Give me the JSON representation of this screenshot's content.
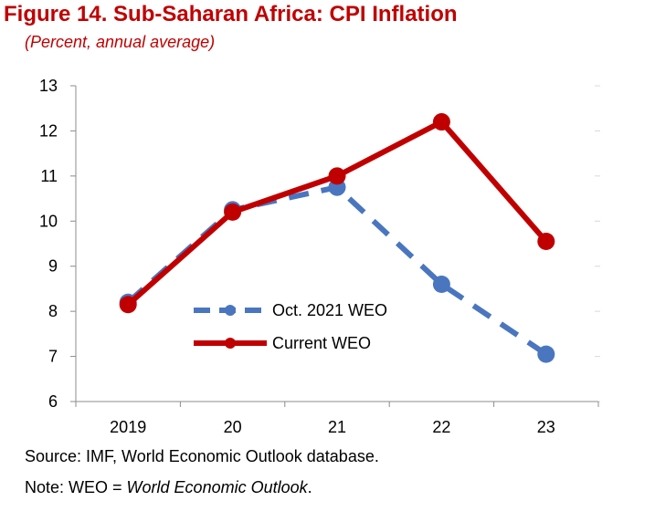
{
  "figure": {
    "title": "Figure 14. Sub-Saharan Africa: CPI Inflation",
    "subtitle": "(Percent, annual average)"
  },
  "chart_data": {
    "type": "line",
    "categories": [
      "2019",
      "20",
      "21",
      "22",
      "23"
    ],
    "ylim": [
      6,
      13
    ],
    "yticks": [
      6,
      7,
      8,
      9,
      10,
      11,
      12,
      13
    ],
    "grid": false,
    "legend_position": "center-left",
    "series": [
      {
        "name": "Oct. 2021 WEO",
        "values": [
          8.2,
          10.25,
          10.75,
          8.6,
          7.05
        ],
        "color": "#4a76c0",
        "style": "dashed"
      },
      {
        "name": "Current WEO",
        "values": [
          8.15,
          10.2,
          11.0,
          12.2,
          9.55
        ],
        "color": "#c00000",
        "style": "solid"
      }
    ]
  },
  "footer": {
    "source": "Source: IMF, World Economic Outlook database.",
    "note_prefix": "Note: WEO = ",
    "note_italic": "World Economic Outlook",
    "note_suffix": "."
  }
}
